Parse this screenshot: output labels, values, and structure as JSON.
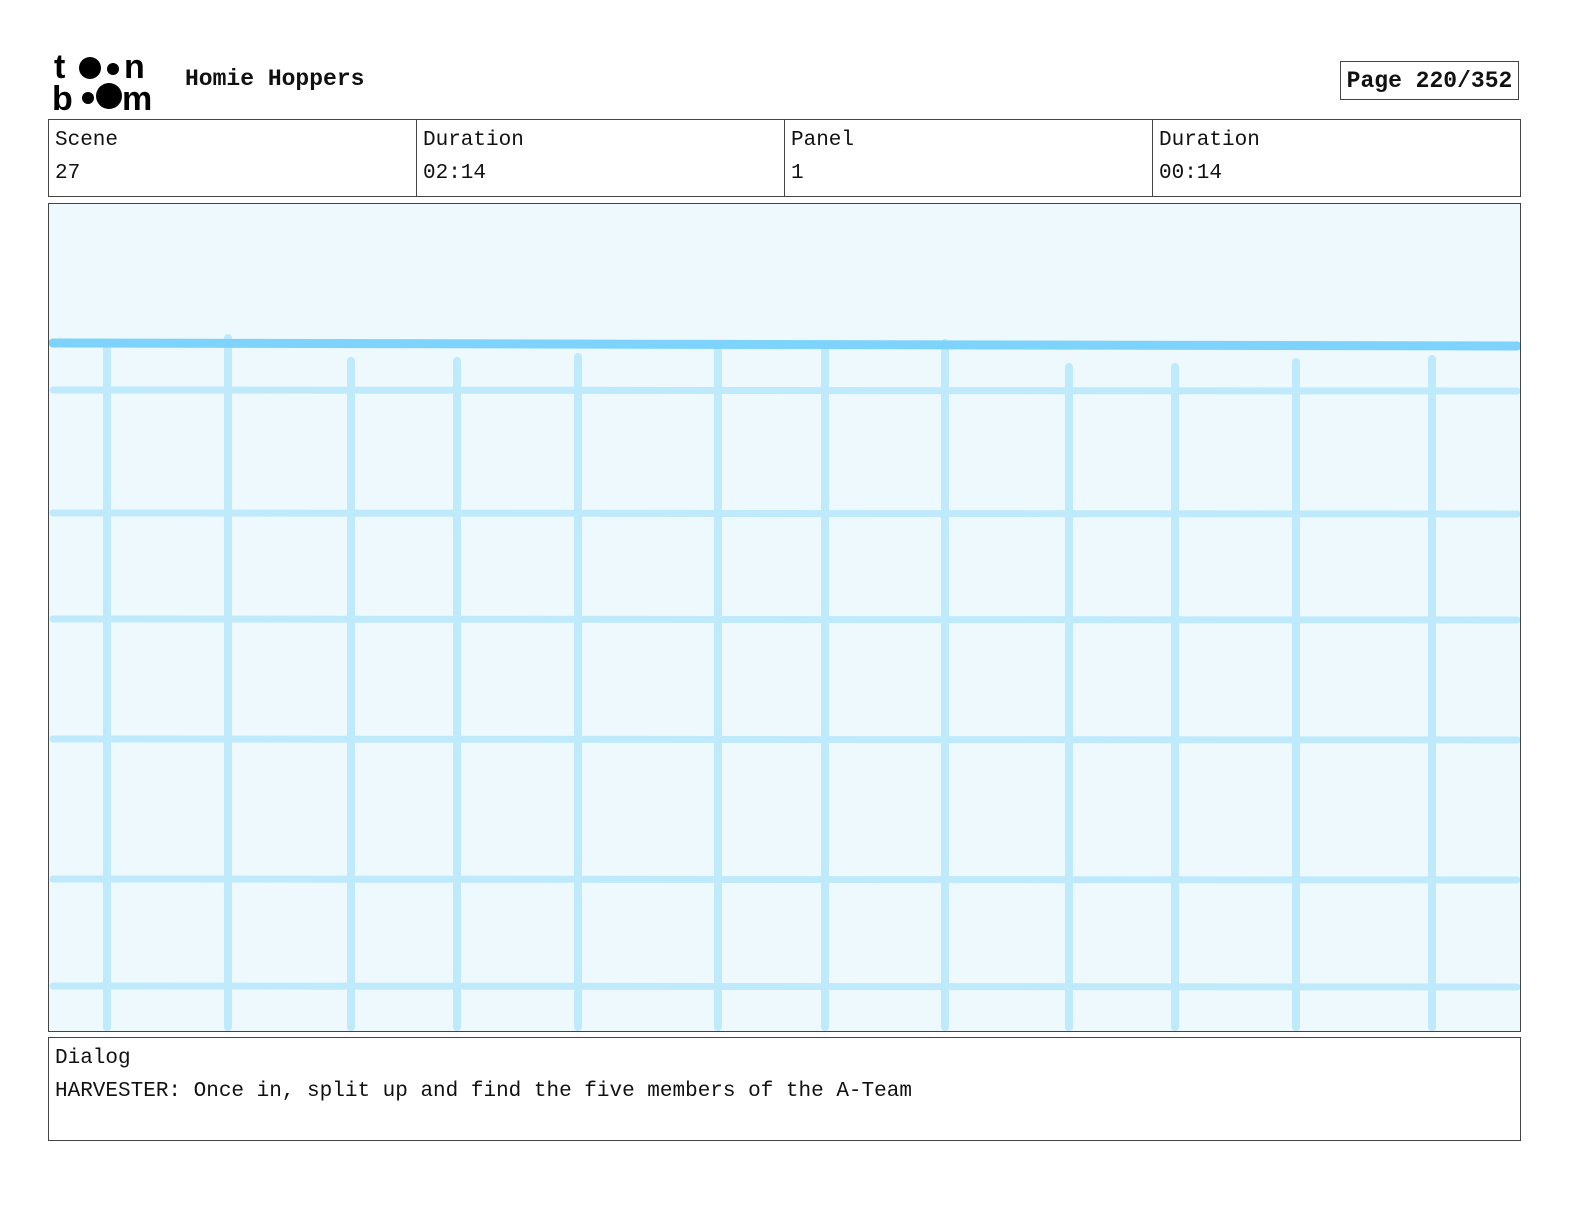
{
  "header": {
    "logo_text": "toon boom",
    "project_title": "Homie Hoppers",
    "page_label": "Page 220/352"
  },
  "info": [
    {
      "label": "Scene",
      "value": "27"
    },
    {
      "label": "Duration",
      "value": "02:14"
    },
    {
      "label": "Panel",
      "value": "1"
    },
    {
      "label": "Duration",
      "value": "00:14"
    }
  ],
  "panel": {
    "colors": {
      "background": "#eef9fd",
      "grid": "#bfeafc",
      "horizon": "#7dd3fb"
    }
  },
  "dialog": {
    "label": "Dialog",
    "text": "HARVESTER: Once in, split up and find the five members of the A-Team"
  }
}
